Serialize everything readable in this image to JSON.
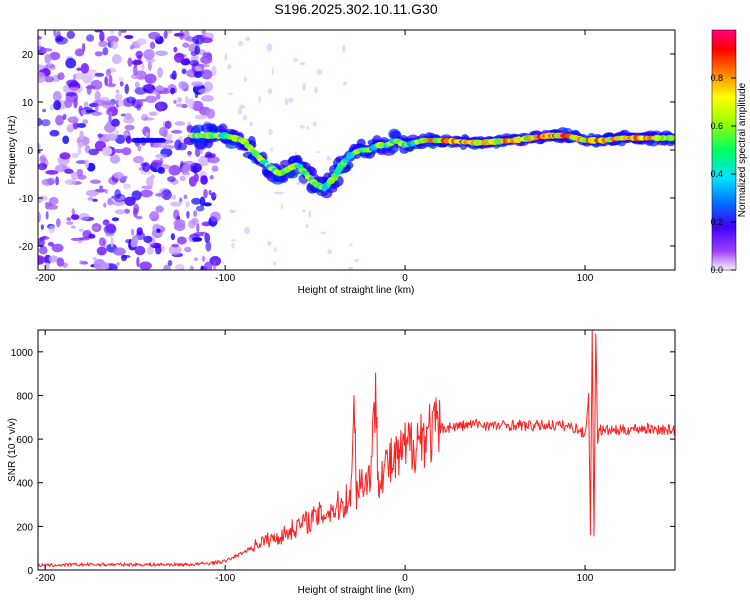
{
  "title": "S196.2025.302.10.11.G30",
  "chart_data": [
    {
      "type": "heatmap",
      "xlabel": "Height of straight line (km)",
      "ylabel": "Frequency (Hz)",
      "xlim": [
        -204,
        150
      ],
      "ylim": [
        -25,
        25
      ],
      "xticks": [
        -200,
        -100,
        0,
        100
      ],
      "yticks": [
        -20,
        -10,
        0,
        10,
        20
      ],
      "colorbar": {
        "label": "Normalized spectral amplitude",
        "range": [
          0,
          1
        ],
        "ticks": [
          0.0,
          0.2,
          0.4,
          0.6,
          0.8
        ],
        "tick_labels": [
          "0.0",
          "0.2",
          "0.4",
          "0.6",
          "0.8"
        ],
        "colormap": [
          "#f8f0ff",
          "#6a00ff",
          "#0000ff",
          "#00c8ff",
          "#00ff80",
          "#a0ff00",
          "#ffff00",
          "#ff8000",
          "#ff0000",
          "#ff0080"
        ]
      },
      "features": [
        {
          "name": "noise-region",
          "x": [
            -204,
            -105
          ],
          "y": [
            -25,
            25
          ],
          "amplitude": 0.2
        },
        {
          "name": "short-segment",
          "x": [
            -150,
            -135
          ],
          "y": [
            2,
            2
          ],
          "amplitude": 0.3
        },
        {
          "name": "main-ridge",
          "x": [
            -118,
            -100,
            -90,
            -80,
            -70,
            -60,
            -50,
            -45,
            -40,
            -35,
            -30,
            -25,
            -20,
            -15,
            -10,
            -5,
            0,
            10,
            20,
            40,
            60,
            80,
            90,
            100,
            110,
            120,
            150
          ],
          "y": [
            3,
            3,
            2,
            -2,
            -5,
            -3,
            -7,
            -8,
            -6,
            -3,
            -1,
            0,
            0,
            1,
            1,
            2,
            1,
            2,
            2,
            1.5,
            2,
            3,
            3,
            2,
            2,
            2.5,
            2.5
          ],
          "amplitude": 0.75
        }
      ]
    },
    {
      "type": "line",
      "xlabel": "Height of straight line (km)",
      "ylabel": "SNR (10 * v/v)",
      "xlim": [
        -204,
        150
      ],
      "ylim": [
        0,
        1100
      ],
      "xticks": [
        -200,
        -100,
        0,
        100
      ],
      "yticks": [
        0,
        200,
        400,
        600,
        800,
        1000
      ],
      "color": "#ff2020",
      "series": [
        {
          "name": "SNR",
          "x": [
            -204,
            -180,
            -160,
            -140,
            -120,
            -110,
            -100,
            -90,
            -80,
            -70,
            -60,
            -50,
            -40,
            -35,
            -30,
            -28,
            -27,
            -26,
            -20,
            -16,
            -15,
            -14,
            -10,
            -5,
            0,
            5,
            10,
            20,
            30,
            40,
            50,
            60,
            70,
            80,
            90,
            95,
            100,
            102,
            103,
            104,
            105,
            106,
            107,
            108,
            109,
            110,
            120,
            130,
            140,
            150
          ],
          "y": [
            20,
            25,
            25,
            25,
            25,
            30,
            40,
            80,
            130,
            150,
            200,
            240,
            280,
            300,
            350,
            790,
            350,
            400,
            420,
            780,
            420,
            450,
            480,
            500,
            550,
            590,
            620,
            650,
            660,
            670,
            660,
            665,
            660,
            665,
            660,
            650,
            620,
            800,
            180,
            1100,
            150,
            1100,
            600,
            650,
            640,
            640,
            640,
            650,
            645,
            640
          ]
        }
      ]
    }
  ]
}
